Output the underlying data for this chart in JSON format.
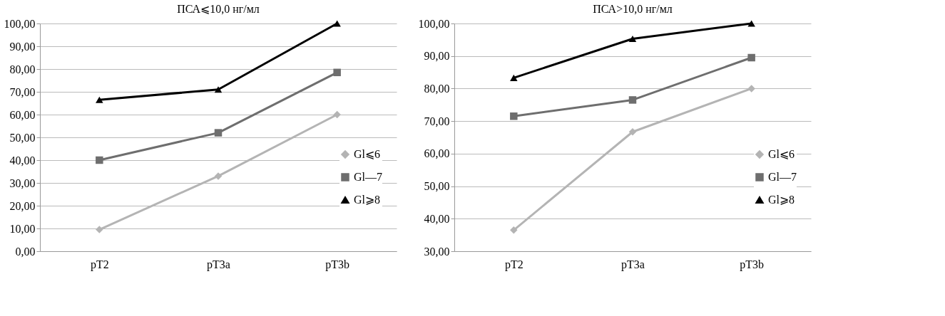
{
  "chart_data": [
    {
      "type": "line",
      "title": "ПСА⩽10,0 нг/мл",
      "categories": [
        "pT2",
        "pT3a",
        "pT3b"
      ],
      "ylim": [
        0,
        100
      ],
      "yticks": [
        {
          "value": 0,
          "label": "0,00"
        },
        {
          "value": 10,
          "label": "10,00"
        },
        {
          "value": 20,
          "label": "20,00"
        },
        {
          "value": 30,
          "label": "30,00"
        },
        {
          "value": 40,
          "label": "40,00"
        },
        {
          "value": 50,
          "label": "50,00"
        },
        {
          "value": 60,
          "label": "60,00"
        },
        {
          "value": 70,
          "label": "70,00"
        },
        {
          "value": 80,
          "label": "80,00"
        },
        {
          "value": 90,
          "label": "90,00"
        },
        {
          "value": 100,
          "label": "100,00"
        }
      ],
      "grid": "y",
      "legend": "right",
      "series": [
        {
          "name": "Gl⩽6",
          "color": "#b4b4b4",
          "marker": "diamond",
          "values": [
            9.5,
            33,
            60
          ]
        },
        {
          "name": "Gl—7",
          "color": "#6e6e6e",
          "marker": "square",
          "values": [
            40,
            52,
            78.5
          ]
        },
        {
          "name": "Gl⩾8",
          "color": "#000000",
          "marker": "triangle",
          "values": [
            66.5,
            71,
            100
          ]
        }
      ]
    },
    {
      "type": "line",
      "title": "ПСА>10,0 нг/мл",
      "categories": [
        "pT2",
        "pT3a",
        "pT3b"
      ],
      "ylim": [
        30,
        100
      ],
      "yticks": [
        {
          "value": 30,
          "label": "30,00"
        },
        {
          "value": 40,
          "label": "40,00"
        },
        {
          "value": 50,
          "label": "50,00"
        },
        {
          "value": 60,
          "label": "60,00"
        },
        {
          "value": 70,
          "label": "70,00"
        },
        {
          "value": 80,
          "label": "80,00"
        },
        {
          "value": 90,
          "label": "90,00"
        },
        {
          "value": 100,
          "label": "100,00"
        }
      ],
      "grid": "y",
      "legend": "right",
      "series": [
        {
          "name": "Gl⩽6",
          "color": "#b4b4b4",
          "marker": "diamond",
          "values": [
            36.5,
            66.7,
            80
          ]
        },
        {
          "name": "Gl—7",
          "color": "#6e6e6e",
          "marker": "square",
          "values": [
            71.5,
            76.5,
            89.5
          ]
        },
        {
          "name": "Gl⩾8",
          "color": "#000000",
          "marker": "triangle",
          "values": [
            83.3,
            95.3,
            100
          ]
        }
      ]
    }
  ]
}
